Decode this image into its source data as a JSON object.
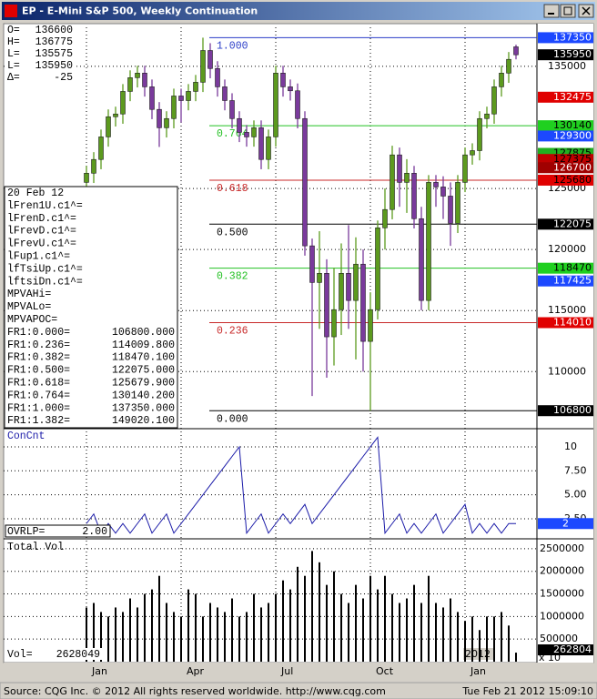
{
  "window": {
    "title": "EP - E-Mini S&P 500, Weekly Continuation"
  },
  "status_bar": {
    "source": "Source: CQG Inc. © 2012 All rights reserved worldwide. http://www.cqg.com",
    "timestamp": "Tue Feb 21 2012 15:09:10"
  },
  "quote_box": {
    "rows": [
      [
        "O=",
        "136600"
      ],
      [
        "H=",
        "136775"
      ],
      [
        "L=",
        "135575"
      ],
      [
        "L=",
        "135950"
      ],
      [
        "Δ=",
        "-25"
      ]
    ]
  },
  "info_box": {
    "rows": [
      [
        "20 Feb 12"
      ],
      [
        "lFren1U.c1^="
      ],
      [
        "lFrenD.c1^="
      ],
      [
        "lFrevD.c1^="
      ],
      [
        "lFrevU.c1^="
      ],
      [
        "lFup1.c1^="
      ],
      [
        "lfTsiUp.c1^="
      ],
      [
        "lftsiDn.c1^="
      ],
      [
        "MPVAHi="
      ],
      [
        "MPVALo="
      ],
      [
        "MPVAPOC="
      ],
      [
        "FR1:0.000=",
        "106800.000"
      ],
      [
        "FR1:0.236=",
        "114009.800"
      ],
      [
        "FR1:0.382=",
        "118470.100"
      ],
      [
        "FR1:0.500=",
        "122075.000"
      ],
      [
        "FR1:0.618=",
        "125679.900"
      ],
      [
        "FR1:0.764=",
        "130140.200"
      ],
      [
        "FR1:1.000=",
        "137350.000"
      ],
      [
        "FR1:1.382=",
        "149020.100"
      ]
    ]
  },
  "chart_data": [
    {
      "type": "candlestick",
      "categories": [
        "Jan",
        null,
        null,
        null,
        null,
        null,
        null,
        null,
        null,
        null,
        null,
        null,
        null,
        "Apr",
        null,
        null,
        null,
        null,
        null,
        null,
        null,
        null,
        null,
        null,
        null,
        null,
        "Jul",
        null,
        null,
        null,
        null,
        null,
        null,
        null,
        null,
        null,
        null,
        null,
        null,
        "Oct",
        null,
        null,
        null,
        null,
        null,
        null,
        null,
        null,
        null,
        null,
        null,
        null,
        "Jan",
        null,
        null,
        null,
        null,
        null,
        null,
        null
      ],
      "year_label": "2012",
      "open": [
        125500,
        126250,
        127375,
        129225,
        130875,
        131100,
        132950,
        134075,
        134450,
        133325,
        131475,
        129975,
        130725,
        132575,
        132200,
        132950,
        133700,
        136300,
        134825,
        133325,
        132200,
        130725,
        129600,
        129225,
        129975,
        127375,
        129225,
        134450,
        133325,
        133000,
        130725,
        120300,
        117300,
        118050,
        112850,
        115075,
        118050,
        115825,
        118800,
        112475,
        115075,
        121775,
        123275,
        127750,
        125500,
        126250,
        122525,
        115825,
        125500,
        125125,
        124375,
        122150,
        125500,
        127750,
        128100,
        130725,
        131100,
        133325,
        134450,
        136600
      ],
      "high": [
        126850,
        127975,
        129825,
        131475,
        131700,
        133550,
        134675,
        135050,
        135050,
        133925,
        132075,
        131325,
        133175,
        133175,
        133550,
        134300,
        137350,
        136900,
        135425,
        133925,
        132800,
        131325,
        130200,
        130575,
        130575,
        129825,
        135050,
        135050,
        133925,
        133600,
        131325,
        120900,
        121500,
        119200,
        118500,
        120500,
        122000,
        121000,
        120000,
        116500,
        122375,
        125000,
        128500,
        128350,
        127400,
        126850,
        123500,
        126100,
        126100,
        126000,
        125500,
        126100,
        128350,
        128700,
        131325,
        131700,
        133925,
        135050,
        136175,
        136775
      ],
      "low": [
        124700,
        125450,
        126575,
        128425,
        130075,
        130300,
        132150,
        133275,
        132525,
        130675,
        128400,
        129175,
        129925,
        130400,
        131400,
        132150,
        132900,
        134025,
        132525,
        131400,
        129925,
        128800,
        128425,
        128425,
        126575,
        126575,
        128425,
        132525,
        132200,
        129925,
        119500,
        108000,
        113500,
        109500,
        110500,
        113000,
        113500,
        111000,
        110000,
        106800,
        114275,
        120000,
        122475,
        123500,
        123000,
        121725,
        115025,
        115025,
        123500,
        122500,
        120300,
        121350,
        124700,
        126950,
        127300,
        129925,
        130300,
        132525,
        133650,
        135575
      ],
      "close": [
        126250,
        127375,
        129225,
        130875,
        131100,
        132950,
        134075,
        134450,
        133325,
        131475,
        129975,
        130725,
        132575,
        132200,
        132950,
        133700,
        136300,
        134825,
        133325,
        132200,
        130725,
        129600,
        129225,
        129975,
        127375,
        129225,
        134450,
        133325,
        133000,
        130725,
        120300,
        117300,
        118050,
        112850,
        115075,
        118050,
        115825,
        118800,
        112475,
        115075,
        121775,
        123275,
        127750,
        125500,
        126250,
        122525,
        115825,
        125500,
        125125,
        124375,
        122150,
        125500,
        127750,
        128100,
        130725,
        131100,
        133325,
        134450,
        135575,
        135950
      ],
      "up_color": "#5c9a1e",
      "down_color": "#7a3a9c",
      "ylim": [
        105400,
        138200
      ],
      "yticks": [
        110000,
        115000,
        120000,
        125000,
        135000
      ],
      "grid": true,
      "fib_levels": [
        {
          "ratio": "1.000",
          "price": 137350,
          "color": "#2a3cc8"
        },
        {
          "ratio": "0.764",
          "price": 130140,
          "color": "#22c022"
        },
        {
          "ratio": "0.618",
          "price": 125680,
          "color": "#c82828"
        },
        {
          "ratio": "0.500",
          "price": 122075,
          "color": "#000000"
        },
        {
          "ratio": "0.382",
          "price": 118470,
          "color": "#22c022"
        },
        {
          "ratio": "0.236",
          "price": 114010,
          "color": "#c82828"
        },
        {
          "ratio": "0.000",
          "price": 106800,
          "color": "#000000"
        }
      ],
      "price_markers": [
        {
          "value": 137350,
          "color": "#1c48ff",
          "text_color": "#ffffff"
        },
        {
          "value": 135950,
          "color": "#000000",
          "text_color": "#ffffff"
        },
        {
          "value": 132475,
          "color": "#e00000",
          "text_color": "#ffffff"
        },
        {
          "value": 130140,
          "color": "#20d020",
          "text_color": "#000000"
        },
        {
          "value": 129300,
          "color": "#1c48ff",
          "text_color": "#ffffff"
        },
        {
          "value": 127875,
          "color": "#20b020",
          "text_color": "#000000"
        },
        {
          "value": 127375,
          "color": "#c00000",
          "text_color": "#000000"
        },
        {
          "value": 126700,
          "color": "#a00000",
          "text_color": "#ffffff"
        },
        {
          "value": 125680,
          "color": "#e00000",
          "text_color": "#000000"
        },
        {
          "value": 122075,
          "color": "#000000",
          "text_color": "#ffffff"
        },
        {
          "value": 118470,
          "color": "#20d020",
          "text_color": "#000000"
        },
        {
          "value": 117425,
          "color": "#1c48ff",
          "text_color": "#ffffff"
        },
        {
          "value": 114010,
          "color": "#e00000",
          "text_color": "#ffffff"
        },
        {
          "value": 106800,
          "color": "#000000",
          "text_color": "#ffffff"
        }
      ]
    },
    {
      "type": "line",
      "title": "ConCnt",
      "color": "#1a1aa8",
      "values": [
        2,
        3,
        1,
        2,
        1,
        2,
        1,
        2,
        3,
        1,
        2,
        3,
        1,
        2,
        3,
        4,
        5,
        6,
        7,
        8,
        9,
        10,
        1,
        2,
        3,
        1,
        2,
        3,
        2,
        3,
        4,
        2,
        3,
        4,
        5,
        6,
        7,
        8,
        9,
        10,
        11,
        1,
        2,
        3,
        1,
        2,
        1,
        2,
        3,
        1,
        2,
        3,
        4,
        1,
        2,
        1,
        2,
        1,
        2,
        2
      ],
      "ylim": [
        0.6,
        11.8
      ],
      "yticks": [
        {
          "value": 2.5,
          "label": "2.50"
        },
        {
          "value": 5,
          "label": "5.00"
        },
        {
          "value": 7.5,
          "label": "7.50"
        },
        10
      ],
      "grid": true,
      "overlap_label": "OVRLP=",
      "overlap_value": "2.00",
      "last_color": "#1c48ff"
    },
    {
      "type": "bar",
      "title": "Total Vol",
      "color": "#000000",
      "values": [
        1200000,
        1300000,
        1100000,
        1000000,
        1200000,
        1100000,
        1400000,
        1200000,
        1500000,
        1600000,
        1900000,
        1300000,
        1100000,
        1000000,
        1600000,
        1500000,
        1000000,
        1300000,
        1200000,
        1100000,
        1400000,
        1000000,
        1100000,
        1500000,
        1200000,
        1300000,
        1500000,
        1800000,
        1600000,
        2100000,
        1900000,
        2450000,
        2200000,
        1700000,
        2000000,
        1500000,
        1300000,
        1700000,
        1400000,
        1900000,
        1600000,
        1900000,
        1500000,
        1300000,
        1400000,
        1700000,
        1300000,
        1900000,
        1300000,
        1200000,
        1400000,
        1100000,
        900000,
        1000000,
        700000,
        1000000,
        1000000,
        1100000,
        800000,
        200000
      ],
      "ylim": [
        0,
        2680000
      ],
      "yticks": [
        500000,
        1000000,
        1500000,
        2000000,
        2500000
      ],
      "grid": true,
      "vol_label": "Vol=",
      "vol_value": "2628049",
      "last_label": "262804",
      "scale_note": "x 10"
    }
  ]
}
